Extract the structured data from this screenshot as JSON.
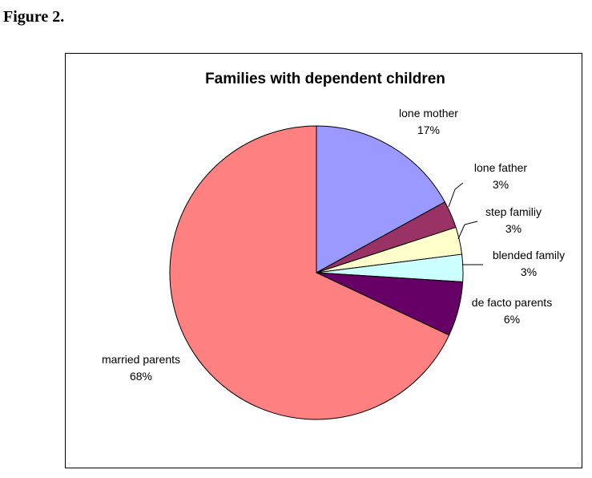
{
  "figure_label": "Figure 2.",
  "chart_data": {
    "type": "pie",
    "title": "Families with dependent children",
    "slices": [
      {
        "label": "lone mother",
        "pct_label": "17%",
        "value": 17,
        "color": "#9999ff"
      },
      {
        "label": "lone father",
        "pct_label": "3%",
        "value": 3,
        "color": "#993366"
      },
      {
        "label": "step familiy",
        "pct_label": "3%",
        "value": 3,
        "color": "#ffffcc"
      },
      {
        "label": "blended family",
        "pct_label": "3%",
        "value": 3,
        "color": "#ccffff"
      },
      {
        "label": "de facto parents",
        "pct_label": "6%",
        "value": 6,
        "color": "#660066"
      },
      {
        "label": "married parents",
        "pct_label": "68%",
        "value": 68,
        "color": "#ff8080"
      }
    ],
    "start_angle": "12 o'clock",
    "direction": "clockwise",
    "legend": "none"
  }
}
